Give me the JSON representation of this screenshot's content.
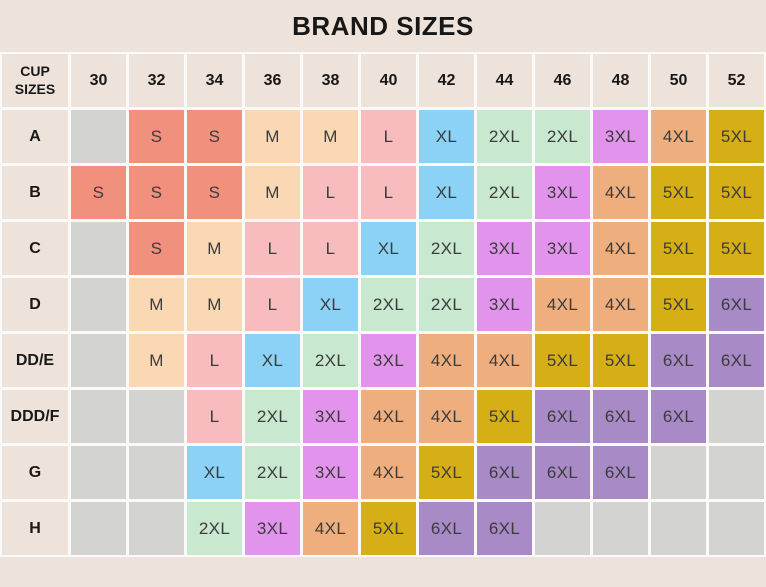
{
  "title": "BRAND SIZES",
  "chart_data": {
    "type": "table",
    "corner_label": "CUP SIZES",
    "columns": [
      "30",
      "32",
      "34",
      "36",
      "38",
      "40",
      "42",
      "44",
      "46",
      "48",
      "50",
      "52"
    ],
    "rows": [
      {
        "cup_size": "A",
        "values": [
          "",
          "S",
          "S",
          "M",
          "M",
          "L",
          "XL",
          "2XL",
          "2XL",
          "3XL",
          "4XL",
          "5XL"
        ]
      },
      {
        "cup_size": "B",
        "values": [
          "S",
          "S",
          "S",
          "M",
          "L",
          "L",
          "XL",
          "2XL",
          "3XL",
          "4XL",
          "5XL",
          "5XL"
        ]
      },
      {
        "cup_size": "C",
        "values": [
          "",
          "S",
          "M",
          "L",
          "L",
          "XL",
          "2XL",
          "3XL",
          "3XL",
          "4XL",
          "5XL",
          "5XL"
        ]
      },
      {
        "cup_size": "D",
        "values": [
          "",
          "M",
          "M",
          "L",
          "XL",
          "2XL",
          "2XL",
          "3XL",
          "4XL",
          "4XL",
          "5XL",
          "6XL"
        ]
      },
      {
        "cup_size": "DD/E",
        "values": [
          "",
          "M",
          "L",
          "XL",
          "2XL",
          "3XL",
          "4XL",
          "4XL",
          "5XL",
          "5XL",
          "6XL",
          "6XL"
        ]
      },
      {
        "cup_size": "DDD/F",
        "values": [
          "",
          "",
          "L",
          "2XL",
          "3XL",
          "4XL",
          "4XL",
          "5XL",
          "6XL",
          "6XL",
          "6XL",
          ""
        ]
      },
      {
        "cup_size": "G",
        "values": [
          "",
          "",
          "XL",
          "2XL",
          "3XL",
          "4XL",
          "5XL",
          "6XL",
          "6XL",
          "6XL",
          "",
          ""
        ]
      },
      {
        "cup_size": "H",
        "values": [
          "",
          "",
          "2XL",
          "3XL",
          "4XL",
          "5XL",
          "6XL",
          "6XL",
          "",
          "",
          "",
          ""
        ]
      }
    ]
  },
  "colors": {
    "size_fills": {
      "S": "#f2907e",
      "M": "#fbd8b4",
      "L": "#f8bcbe",
      "XL": "#8bd2f6",
      "2XL": "#c8e8d0",
      "3XL": "#e294ec",
      "4XL": "#eeae7d",
      "5XL": "#d6ae16",
      "6XL": "#a78ac6",
      "empty": "#d3d3d1"
    },
    "background": "#ede3da",
    "header_fill": "#ede3da",
    "grid_line": "#fcfaf8",
    "cell_text": "#3c3c3c",
    "label_text": "#181818"
  }
}
